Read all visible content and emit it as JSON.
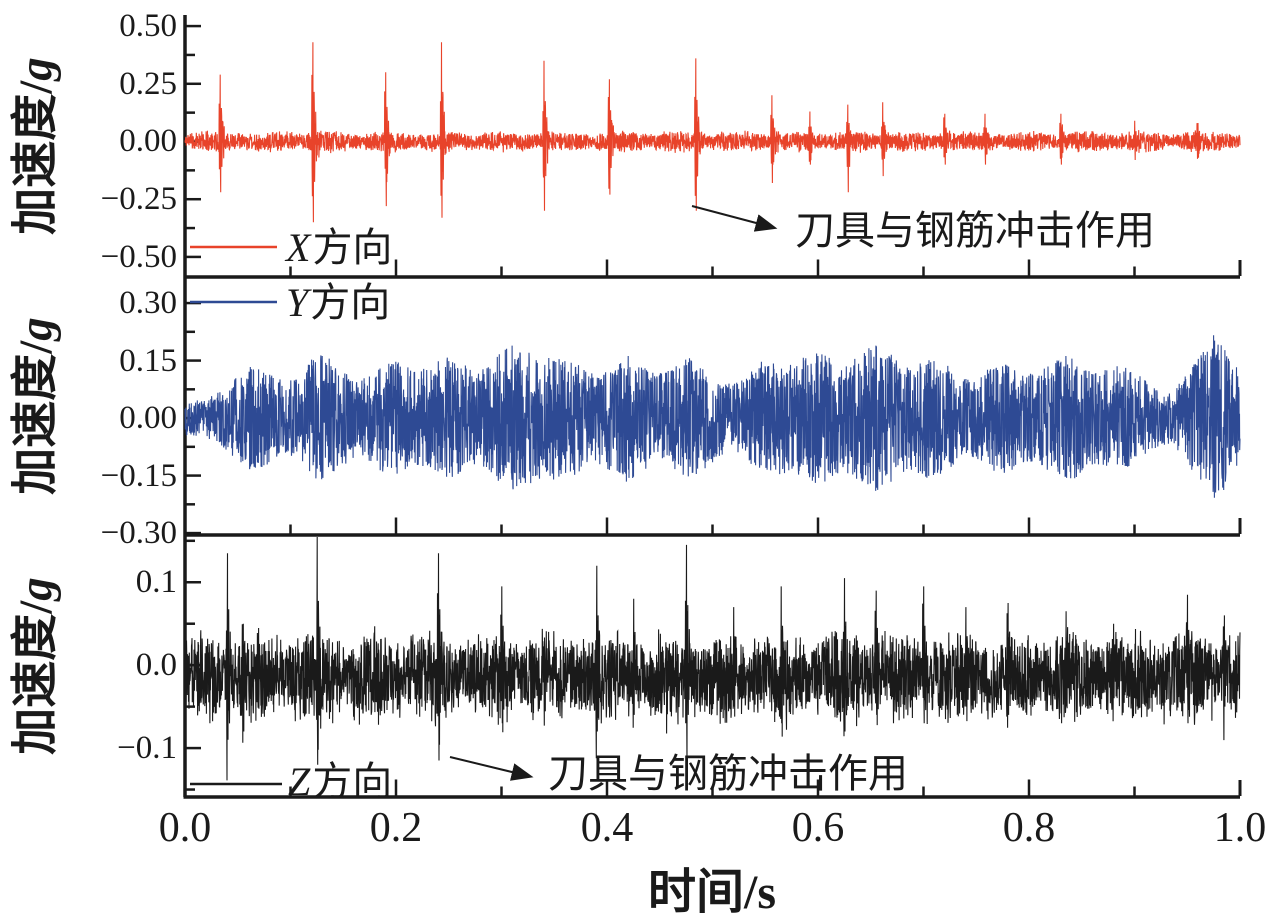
{
  "chart_data": {
    "type": "line",
    "title": "",
    "xlabel": "时间/s",
    "ylabel": "加速度/g",
    "ylabel_prefix": "加速度/",
    "ylabel_unit": "g",
    "grid": false,
    "background": "#ffffff",
    "axis_color": "#1a1a1a",
    "x": {
      "lim": [
        0,
        1
      ],
      "major_ticks": [
        0,
        0.2,
        0.4,
        0.6,
        0.8,
        1.0
      ],
      "tick_labels": [
        "0.0",
        "0.2",
        "0.4",
        "0.6",
        "0.8",
        "1.0"
      ],
      "minor_step": 0.1
    },
    "series": [
      {
        "name": "X方向",
        "legend_axis": "X",
        "legend_suffix": "方向",
        "legend_position": "bottom-left",
        "color": "#e8432a",
        "ylim": [
          -0.587,
          0.548
        ],
        "yticks": [
          0.5,
          0.25,
          0,
          -0.25,
          -0.5
        ],
        "ytick_labels": [
          "0.50",
          "0.25",
          "0.00",
          "−0.25",
          "−0.50"
        ],
        "minor_step": 0.125,
        "annotation": {
          "text": "刀具与钢筋冲击作用",
          "points_to_t": 0.477
        },
        "signal": {
          "kind": "impact",
          "noise": 0.028,
          "impact_t": [
            0.033,
            0.121,
            0.19,
            0.243,
            0.34,
            0.402,
            0.484,
            0.556,
            0.592,
            0.628,
            0.661,
            0.72,
            0.758,
            0.83,
            0.9,
            0.96
          ],
          "impact_peak": [
            0.29,
            0.43,
            0.3,
            0.43,
            0.35,
            0.27,
            0.36,
            0.2,
            0.13,
            0.16,
            0.17,
            0.12,
            0.12,
            0.12,
            0.09,
            0.08
          ],
          "impact_trough": [
            -0.22,
            -0.35,
            -0.28,
            -0.33,
            -0.3,
            -0.23,
            -0.3,
            -0.18,
            -0.1,
            -0.22,
            -0.15,
            -0.1,
            -0.1,
            -0.1,
            -0.08,
            -0.07
          ]
        }
      },
      {
        "name": "Y方向",
        "legend_axis": "Y",
        "legend_suffix": "方向",
        "legend_position": "top-left",
        "color": "#2e4a94",
        "ylim": [
          -0.305,
          0.368
        ],
        "yticks": [
          0.3,
          0.15,
          0,
          -0.15,
          -0.3
        ],
        "ytick_labels": [
          "0.30",
          "0.15",
          "0.00",
          "−0.15",
          "−0.30"
        ],
        "minor_step": 0.075,
        "signal": {
          "kind": "modulated",
          "noise": 0.045,
          "burst_t": [
            0.065,
            0.13,
            0.195,
            0.25,
            0.31,
            0.36,
            0.42,
            0.48,
            0.55,
            0.6,
            0.655,
            0.71,
            0.775,
            0.835,
            0.89,
            0.975
          ],
          "burst_amp": [
            0.09,
            0.12,
            0.1,
            0.11,
            0.14,
            0.11,
            0.12,
            0.11,
            0.1,
            0.12,
            0.14,
            0.11,
            0.1,
            0.12,
            0.09,
            0.16
          ]
        }
      },
      {
        "name": "Z方向",
        "legend_axis": "Z",
        "legend_suffix": "方向",
        "legend_position": "bottom-left",
        "color": "#1a1a1a",
        "ylim": [
          -0.159,
          0.157
        ],
        "yticks": [
          0.1,
          0,
          -0.1
        ],
        "ytick_labels": [
          "0.1",
          "0.0",
          "−0.1"
        ],
        "minor_step": 0.05,
        "annotation": {
          "text": "刀具与钢筋冲击作用",
          "points_to_t": 0.248
        },
        "signal": {
          "kind": "impact",
          "noise": 0.033,
          "bias": -0.012,
          "impact_t": [
            0.04,
            0.055,
            0.125,
            0.24,
            0.3,
            0.39,
            0.425,
            0.475,
            0.52,
            0.565,
            0.625,
            0.655,
            0.7,
            0.74,
            0.78,
            0.835,
            0.88,
            0.95,
            0.985
          ],
          "impact_peak": [
            0.135,
            0.05,
            0.155,
            0.135,
            0.095,
            0.12,
            0.08,
            0.145,
            0.07,
            0.095,
            0.105,
            0.09,
            0.095,
            0.07,
            0.075,
            0.065,
            0.05,
            0.085,
            0.06
          ],
          "impact_trough": [
            -0.09,
            -0.08,
            -0.12,
            -0.115,
            -0.07,
            -0.08,
            -0.06,
            -0.12,
            -0.05,
            -0.07,
            -0.08,
            -0.06,
            -0.07,
            -0.05,
            -0.06,
            -0.05,
            -0.04,
            -0.07,
            -0.05
          ]
        }
      }
    ]
  }
}
